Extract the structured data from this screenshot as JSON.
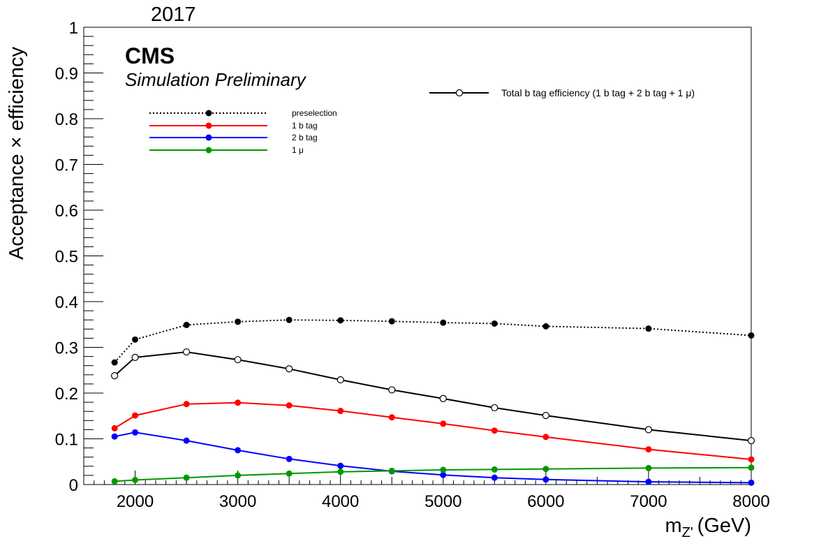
{
  "year_label": "2017",
  "cms_label": "CMS",
  "sim_label": "Simulation Preliminary",
  "chart_data": {
    "type": "line",
    "xlabel_main": "m",
    "xlabel_sub": "Z'",
    "xlabel_unit": "(GeV)",
    "ylabel": "Acceptance × efficiency",
    "xlim": [
      1500,
      8000
    ],
    "ylim": [
      0,
      1
    ],
    "xticks": [
      2000,
      3000,
      4000,
      5000,
      6000,
      7000,
      8000
    ],
    "yticks": [
      0,
      0.1,
      0.2,
      0.3,
      0.4,
      0.5,
      0.6,
      0.7,
      0.8,
      0.9,
      1
    ],
    "ytick_labels": [
      "0",
      "0.1",
      "0.2",
      "0.3",
      "0.4",
      "0.5",
      "0.6",
      "0.7",
      "0.8",
      "0.9",
      "1"
    ],
    "x": [
      1800,
      2000,
      2500,
      3000,
      3500,
      4000,
      4500,
      5000,
      5500,
      6000,
      7000,
      8000
    ],
    "grid": false,
    "series": [
      {
        "name": "preselection",
        "color": "#000000",
        "style": "dotted",
        "marker": "filled",
        "values": [
          0.267,
          0.317,
          0.349,
          0.356,
          0.36,
          0.359,
          0.357,
          0.354,
          0.352,
          0.346,
          0.341,
          0.326
        ]
      },
      {
        "name": "1 b tag",
        "color": "#ff0000",
        "style": "solid",
        "marker": "filled",
        "values": [
          0.123,
          0.151,
          0.176,
          0.179,
          0.173,
          0.161,
          0.147,
          0.133,
          0.118,
          0.104,
          0.077,
          0.055
        ]
      },
      {
        "name": "2 b tag",
        "color": "#0000ff",
        "style": "solid",
        "marker": "filled",
        "values": [
          0.105,
          0.114,
          0.096,
          0.075,
          0.056,
          0.041,
          0.029,
          0.021,
          0.015,
          0.011,
          0.006,
          0.004
        ]
      },
      {
        "name": "1 μ",
        "color": "#009900",
        "style": "solid",
        "marker": "filled",
        "values": [
          0.007,
          0.01,
          0.015,
          0.02,
          0.024,
          0.028,
          0.03,
          0.032,
          0.033,
          0.034,
          0.036,
          0.037
        ]
      },
      {
        "name": "Total b tag efficiency (1 b tag + 2 b tag + 1 μ)",
        "color": "#000000",
        "style": "solid",
        "marker": "open",
        "values": [
          0.238,
          0.278,
          0.29,
          0.273,
          0.253,
          0.229,
          0.207,
          0.188,
          0.168,
          0.151,
          0.12,
          0.096
        ]
      }
    ]
  }
}
